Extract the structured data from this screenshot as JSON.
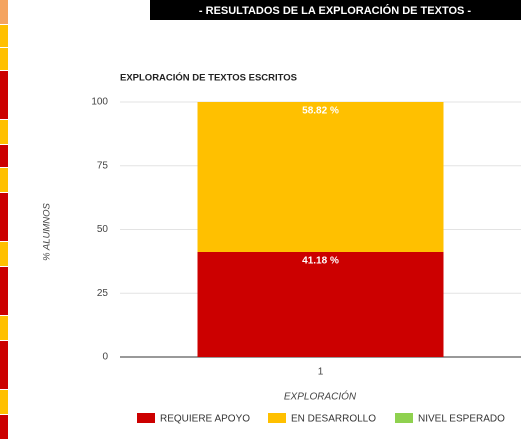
{
  "header": {
    "title": "- RESULTADOS DE LA EXPLORACIÓN DE TEXTOS -"
  },
  "chart_data": {
    "type": "stacked_bar",
    "title": "EXPLORACIÓN DE TEXTOS ESCRITOS",
    "y_label": "% ALUMNOS",
    "x_label": "EXPLORACIÓN",
    "categories": [
      "1"
    ],
    "series": [
      {
        "name": "REQUIERE APOYO",
        "color": "#cc0000",
        "values": [
          41.18
        ],
        "value_labels": [
          "41.18 %"
        ]
      },
      {
        "name": "EN DESARROLLO",
        "color": "#ffc000",
        "values": [
          58.82
        ],
        "value_labels": [
          "58.82 %"
        ]
      },
      {
        "name": "NIVEL ESPERADO",
        "color": "#8fd14f",
        "values": [
          0
        ]
      }
    ],
    "ylim": [
      0,
      100
    ],
    "yticks": [
      0,
      25,
      50,
      75,
      100
    ],
    "grid": true,
    "legend": "bottom"
  }
}
